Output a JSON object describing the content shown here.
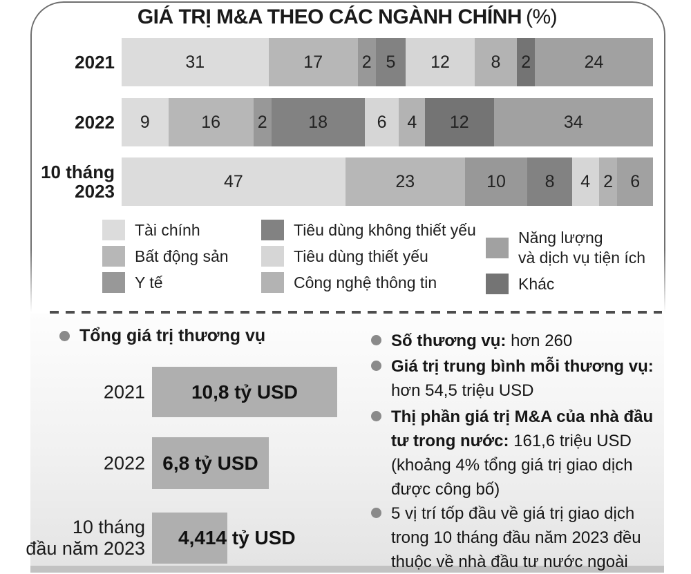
{
  "title": {
    "main": "GIÁ TRỊ M&A THEO CÁC NGÀNH CHÍNH",
    "unit": "(%)"
  },
  "chart_data": [
    {
      "type": "bar",
      "orientation": "horizontal",
      "stacked": true,
      "title": "GIÁ TRỊ M&A THEO CÁC NGÀNH CHÍNH (%)",
      "unit": "%",
      "xlim": [
        0,
        100
      ],
      "categories": [
        "2021",
        "2022",
        "10 tháng 2023"
      ],
      "categories_multiline": [
        "2021",
        "2022",
        "10 tháng\n2023"
      ],
      "series": [
        {
          "id": "tai-chinh",
          "name": "Tài chính",
          "color": "#dcdcdc",
          "values": [
            31,
            9,
            47
          ]
        },
        {
          "id": "bat-dong-san",
          "name": "Bất động sản",
          "color": "#b7b7b7",
          "values": [
            17,
            16,
            23
          ]
        },
        {
          "id": "y-te",
          "name": "Y tế",
          "color": "#989898",
          "values": [
            2,
            2,
            10
          ]
        },
        {
          "id": "tieu-dung-khong-thiet-yeu",
          "name": "Tiêu dùng không thiết yếu",
          "color": "#828282",
          "values": [
            5,
            18,
            8
          ]
        },
        {
          "id": "tieu-dung-thiet-yeu",
          "name": "Tiêu dùng thiết yếu",
          "color": "#d6d6d6",
          "values": [
            12,
            6,
            4
          ]
        },
        {
          "id": "cong-nghe-thong-tin",
          "name": "Công nghệ thông tin",
          "color": "#b3b3b3",
          "values": [
            8,
            4,
            2
          ]
        },
        {
          "id": "khac",
          "name": "Khác",
          "color": "#747474",
          "values": [
            2,
            12,
            0
          ]
        },
        {
          "id": "nang-luong-va-dich-vu-tien-ich",
          "name": "Năng lượng và dịch vụ tiện ích",
          "color": "#a1a1a1",
          "values": [
            24,
            34,
            6
          ]
        }
      ],
      "legend_position": "below"
    },
    {
      "type": "bar",
      "orientation": "horizontal",
      "title": "Tổng giá trị thương vụ",
      "unit": "tỷ USD",
      "categories": [
        "2021",
        "2022",
        "10 tháng đầu năm 2023"
      ],
      "categories_multiline": [
        "2021",
        "2022",
        "10 tháng\nđầu năm 2023"
      ],
      "values": [
        10.8,
        6.8,
        4.414
      ],
      "value_labels": [
        "10,8 tỷ USD",
        "6,8 tỷ USD",
        "4,414 tỷ USD"
      ],
      "bar_color": "#afafaf"
    }
  ],
  "legend": {
    "columns": [
      [
        {
          "label": "Tài chính",
          "color": "#dcdcdc"
        },
        {
          "label": "Bất động sản",
          "color": "#b7b7b7"
        },
        {
          "label": "Y tế",
          "color": "#989898"
        }
      ],
      [
        {
          "label": "Tiêu dùng không thiết yếu",
          "color": "#828282"
        },
        {
          "label": "Tiêu dùng thiết yếu",
          "color": "#d6d6d6"
        },
        {
          "label": "Công nghệ thông tin",
          "color": "#b3b3b3"
        }
      ],
      [
        {
          "label": "Năng lượng\nvà dịch vụ tiện ích",
          "color": "#a1a1a1"
        },
        {
          "label": "Khác",
          "color": "#747474"
        }
      ]
    ]
  },
  "stats": {
    "items": [
      {
        "bold": "Số thương vụ:",
        "text": " hơn 260"
      },
      {
        "bold": "Giá trị trung bình mỗi thương vụ:",
        "text": "\nhơn 54,5 triệu USD"
      },
      {
        "bold": "Thị phần giá trị M&A của nhà đầu tư trong nước:",
        "text": " 161,6 triệu USD (khoảng 4% tổng giá trị giao dịch được công bố)"
      },
      {
        "bold": "",
        "text": "5 vị trí tốp đầu về giá trị giao dịch trong 10 tháng đầu năm 2023 đều thuộc về nhà đầu tư nước ngoài"
      }
    ]
  },
  "colors": {
    "card_border": "#6f6f6f",
    "bullet": "#8a8a8a",
    "dash_line": "#4d4d4d",
    "bottom_strip": "#c2c2c2",
    "text": "#1a1a1a"
  }
}
